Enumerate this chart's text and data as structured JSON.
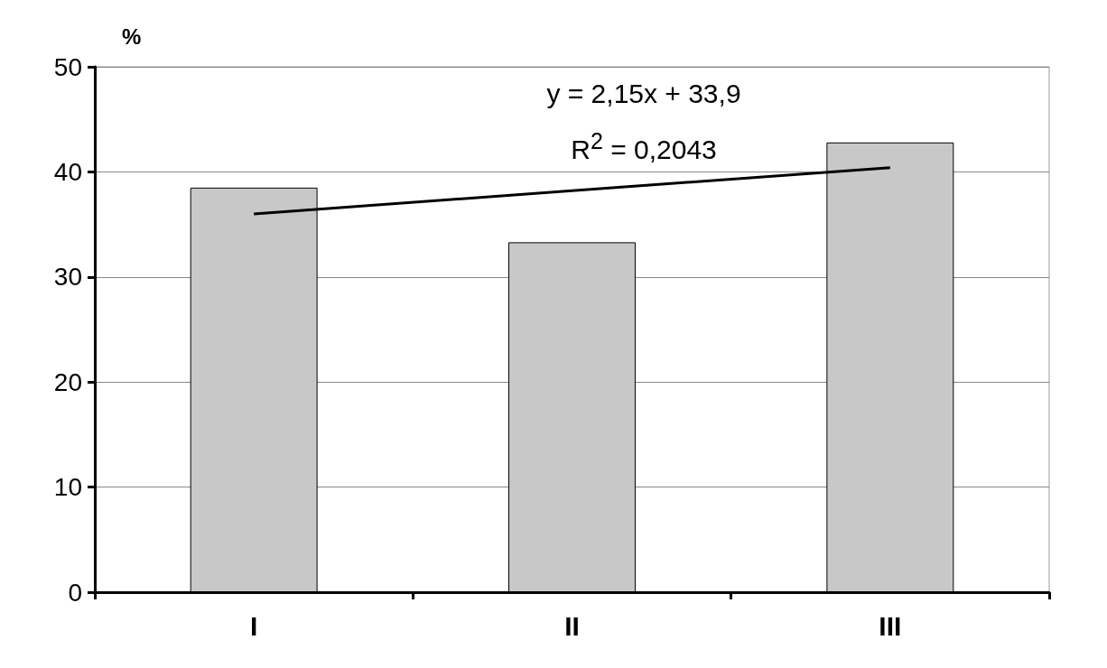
{
  "chart_data": {
    "type": "bar",
    "ylabel": "%",
    "categories": [
      "I",
      "II",
      "III"
    ],
    "series": [
      {
        "color": "#c8c8c8",
        "values": [
          38.5,
          33.3,
          42.8
        ]
      },
      {
        "type": "line",
        "color": "#000000",
        "values": [
          36,
          38.2,
          40.4
        ]
      }
    ],
    "ylim": [
      0,
      50
    ],
    "yticks": [
      0,
      10,
      20,
      30,
      40,
      50
    ],
    "grid": "y",
    "annotations": [
      "y = 2,15x + 33,9",
      "R$^{2}$ = 0,2043"
    ]
  }
}
